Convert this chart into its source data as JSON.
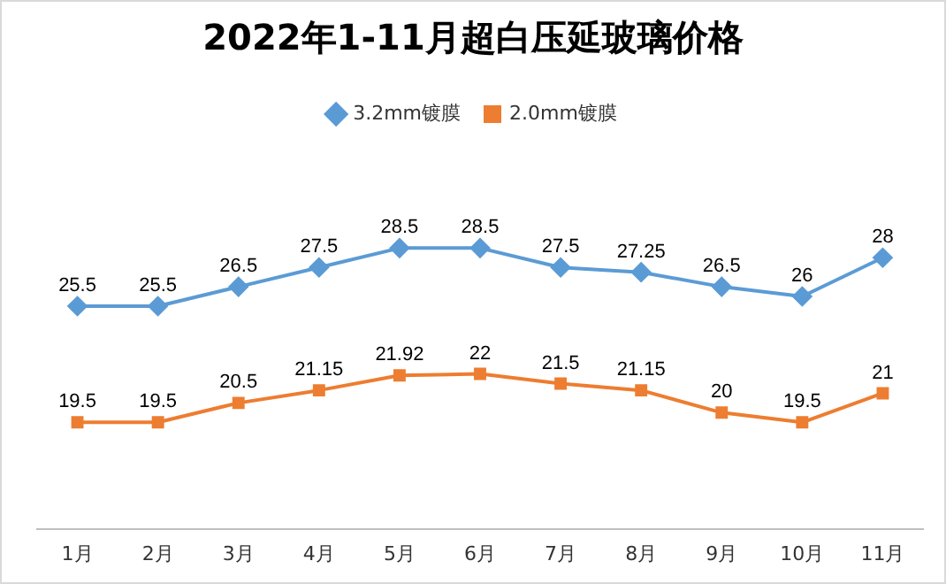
{
  "chart_data": {
    "type": "line",
    "title": "2022年1-11月超白压延玻璃价格",
    "categories": [
      "1月",
      "2月",
      "3月",
      "4月",
      "5月",
      "6月",
      "7月",
      "8月",
      "9月",
      "10月",
      "11月"
    ],
    "series": [
      {
        "name": "3.2mm镀膜",
        "color": "#5b9bd5",
        "marker": "diamond",
        "values": [
          25.5,
          25.5,
          26.5,
          27.5,
          28.5,
          28.5,
          27.5,
          27.25,
          26.5,
          26,
          28
        ]
      },
      {
        "name": "2.0mm镀膜",
        "color": "#ed7d31",
        "marker": "square",
        "values": [
          19.5,
          19.5,
          20.5,
          21.15,
          21.92,
          22,
          21.5,
          21.15,
          20,
          19.5,
          21
        ]
      }
    ],
    "tick_labels": "x",
    "data_labels": true,
    "legend": "top",
    "grid": false,
    "line_style": "solid"
  }
}
